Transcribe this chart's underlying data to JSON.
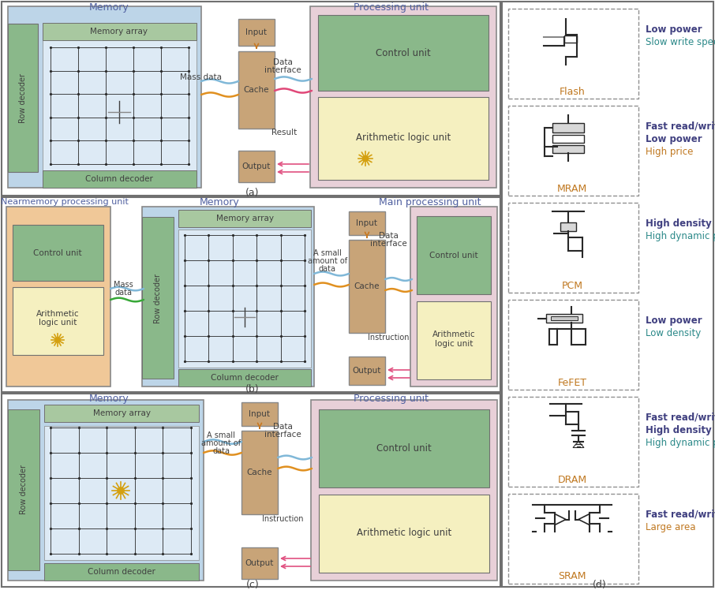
{
  "colors": {
    "light_blue": "#bdd5e8",
    "mem_array_bg": "#ddeaf5",
    "light_green": "#8ab88a",
    "mem_array_header": "#a8c8a0",
    "light_yellow": "#f5f0c0",
    "light_pink": "#e8d0d8",
    "tan": "#c8a478",
    "salmon": "#f0c898",
    "panel_bg": "#ffffff",
    "border": "#888888",
    "text_dark": "#404040",
    "text_blue": "#5060a0",
    "text_orange": "#c07820",
    "text_green_prop": "#3a8a3a",
    "text_teal_prop": "#2a8888",
    "arrow_pink": "#e05080",
    "arrow_orange": "#c87820",
    "wave_blue": "#80b8d8",
    "wave_orange": "#e09020",
    "wave_pink": "#e04878",
    "wave_green": "#38a838",
    "grid_color": "#282828",
    "sun_color": "#d4a010"
  },
  "mem_types": [
    "Flash",
    "MRAM",
    "PCM",
    "FeFET",
    "DRAM",
    "SRAM"
  ],
  "mem_props": [
    [
      [
        "Low power",
        "bold",
        "#404080"
      ],
      [
        "Slow write speed",
        "normal",
        "#2a8888"
      ]
    ],
    [
      [
        "Fast read/write speed",
        "bold",
        "#404080"
      ],
      [
        "Low power",
        "bold",
        "#404080"
      ],
      [
        "High price",
        "normal",
        "#c07820"
      ]
    ],
    [
      [
        "High density",
        "bold",
        "#404080"
      ],
      [
        "High dynamic power",
        "normal",
        "#2a8888"
      ]
    ],
    [
      [
        "Low power",
        "bold",
        "#404080"
      ],
      [
        "Low density",
        "normal",
        "#2a8888"
      ]
    ],
    [
      [
        "Fast read/write speed",
        "bold",
        "#404080"
      ],
      [
        "High density",
        "bold",
        "#404080"
      ],
      [
        "High dynamic power",
        "normal",
        "#2a8888"
      ]
    ],
    [
      [
        "Fast read/write speed",
        "bold",
        "#404080"
      ],
      [
        "Large area",
        "normal",
        "#c07820"
      ]
    ]
  ]
}
